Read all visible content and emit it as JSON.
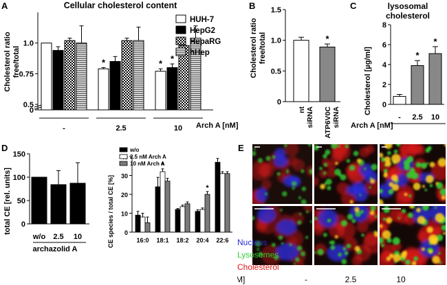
{
  "panels": {
    "A": "A",
    "B": "B",
    "C": "C",
    "D": "D",
    "E": "E"
  },
  "chart_data": [
    {
      "id": "A",
      "type": "bar",
      "title": "Cellular cholesterol content",
      "ylabel": "Cholesterol ratio free/total",
      "ylabel_lines": [
        "Cholesterol ratio",
        "free/total"
      ],
      "xlabel": "Arch A [nM]",
      "categories": [
        "-",
        "2.5",
        "10"
      ],
      "ylim": [
        0,
        1.25
      ],
      "yticks": [
        0,
        0.5,
        0.75,
        1.0
      ],
      "ytick_labels": [
        "0",
        "0.5",
        "0.75",
        "1.0"
      ],
      "axis_break": true,
      "series": [
        {
          "name": "HUH-7",
          "values": [
            1.0,
            0.79,
            0.77
          ],
          "errors": [
            0.0,
            0.01,
            0.02
          ],
          "fill": "#ffffff",
          "pattern": "none"
        },
        {
          "name": "HepG2",
          "values": [
            0.94,
            0.85,
            0.8
          ],
          "errors": [
            0.03,
            0.04,
            0.03
          ],
          "fill": "#000000",
          "pattern": "none"
        },
        {
          "name": "HepaRG",
          "values": [
            1.02,
            1.02,
            0.98
          ],
          "errors": [
            0.02,
            0.02,
            0.03
          ],
          "fill": "#ffffff",
          "pattern": "checker"
        },
        {
          "name": "hHep",
          "values": [
            1.0,
            1.02,
            1.04
          ],
          "errors": [
            0.14,
            0.11,
            0.1
          ],
          "fill": "#ffffff",
          "pattern": "hlines"
        }
      ],
      "significance": [
        {
          "category": 1,
          "series": 0,
          "label": "*"
        },
        {
          "category": 2,
          "series": 0,
          "label": "*"
        },
        {
          "category": 2,
          "series": 1,
          "label": "*"
        }
      ],
      "legend_position": "top-right"
    },
    {
      "id": "B",
      "type": "bar",
      "ylabel": "Cholesterol ratio free/total",
      "ylabel_lines": [
        "Cholesterol ratio",
        "free/total"
      ],
      "categories": [
        "nt siRNA",
        "ATP6V0C siRNA"
      ],
      "category_lines": [
        [
          "nt",
          "siRNA"
        ],
        [
          "ATP6V0C",
          "siRNA"
        ]
      ],
      "ylim": [
        0,
        1.5
      ],
      "yticks": [
        0,
        0.5,
        1.0,
        1.5
      ],
      "ytick_labels": [
        "0",
        "0.5",
        "1.0",
        "1.5"
      ],
      "values": [
        1.0,
        0.89
      ],
      "errors": [
        0.05,
        0.05
      ],
      "fills": [
        "#ffffff",
        "#888888"
      ],
      "significance": [
        {
          "category": 1,
          "label": "*"
        }
      ]
    },
    {
      "id": "C",
      "type": "bar",
      "title": "lysosomal cholesterol",
      "title_lines": [
        "lysosomal",
        "cholesterol"
      ],
      "ylabel": "Cholesterol [µg/ml]",
      "xlabel": "Arch A [nM]",
      "categories": [
        "-",
        "2.5",
        "10"
      ],
      "ylim": [
        0,
        8
      ],
      "yticks": [
        0,
        2,
        4,
        6,
        8
      ],
      "ytick_labels": [
        "0",
        "2",
        "4",
        "6",
        "8"
      ],
      "values": [
        0.8,
        3.9,
        5.1
      ],
      "errors": [
        0.2,
        0.5,
        0.7
      ],
      "fills": [
        "#ffffff",
        "#888888",
        "#888888"
      ],
      "significance": [
        {
          "category": 1,
          "label": "*"
        },
        {
          "category": 2,
          "label": "*"
        }
      ]
    },
    {
      "id": "D1",
      "type": "bar",
      "ylabel": "total CE [rel. units]",
      "xlabel": "archazolid A",
      "categories": [
        "w/o",
        "2.5",
        "10"
      ],
      "ylim": [
        0,
        150
      ],
      "yticks": [
        0,
        50,
        100,
        150
      ],
      "ytick_labels": [
        "0",
        "50",
        "100",
        "150"
      ],
      "values": [
        100,
        84,
        87
      ],
      "errors": [
        0,
        30,
        44
      ],
      "fills": [
        "#000000",
        "#000000",
        "#000000"
      ]
    },
    {
      "id": "D2",
      "type": "bar",
      "ylabel": "CE species / total CE [%]",
      "categories": [
        "16:0",
        "18:1",
        "18:2",
        "20:4",
        "22:6"
      ],
      "ylim": [
        0,
        40
      ],
      "yticks": [
        0,
        10,
        20,
        30,
        40
      ],
      "ytick_labels": [
        "0",
        "10",
        "20",
        "30",
        "40"
      ],
      "series": [
        {
          "name": "w/o",
          "values": [
            9,
            24,
            12,
            11,
            37
          ],
          "errors": [
            2,
            5,
            0.5,
            0.8,
            2
          ],
          "fill": "#000000"
        },
        {
          "name": "2.5 nM Arch A",
          "values": [
            8,
            32,
            13.5,
            12,
            31
          ],
          "errors": [
            2,
            1.5,
            0.8,
            0.8,
            1
          ],
          "fill": "#ffffff"
        },
        {
          "name": "10 nM Arch A",
          "values": [
            5,
            27,
            15,
            20,
            31
          ],
          "errors": [
            3,
            1.5,
            1,
            1.5,
            1
          ],
          "fill": "#7a7a7a"
        }
      ],
      "significance": [
        {
          "category": 1,
          "series": 1,
          "label": "*"
        },
        {
          "category": 3,
          "series": 2,
          "label": "*"
        }
      ],
      "legend_position": "top-left"
    }
  ],
  "microscopy": {
    "stain_labels": [
      {
        "text": "Nucleus",
        "color": "#2b2bd8"
      },
      {
        "text": "Lysosomes",
        "color": "#33cc33"
      },
      {
        "text": "Cholesterol",
        "color": "#e01818"
      }
    ],
    "axis_label": "Arch A [nM]",
    "conditions": [
      "-",
      "2.5",
      "10"
    ],
    "colors": {
      "nucleus": "#2b2bd8",
      "lysosome": "#33cc33",
      "cholesterol": "#e01818",
      "yellow": "#ffd21c"
    }
  }
}
